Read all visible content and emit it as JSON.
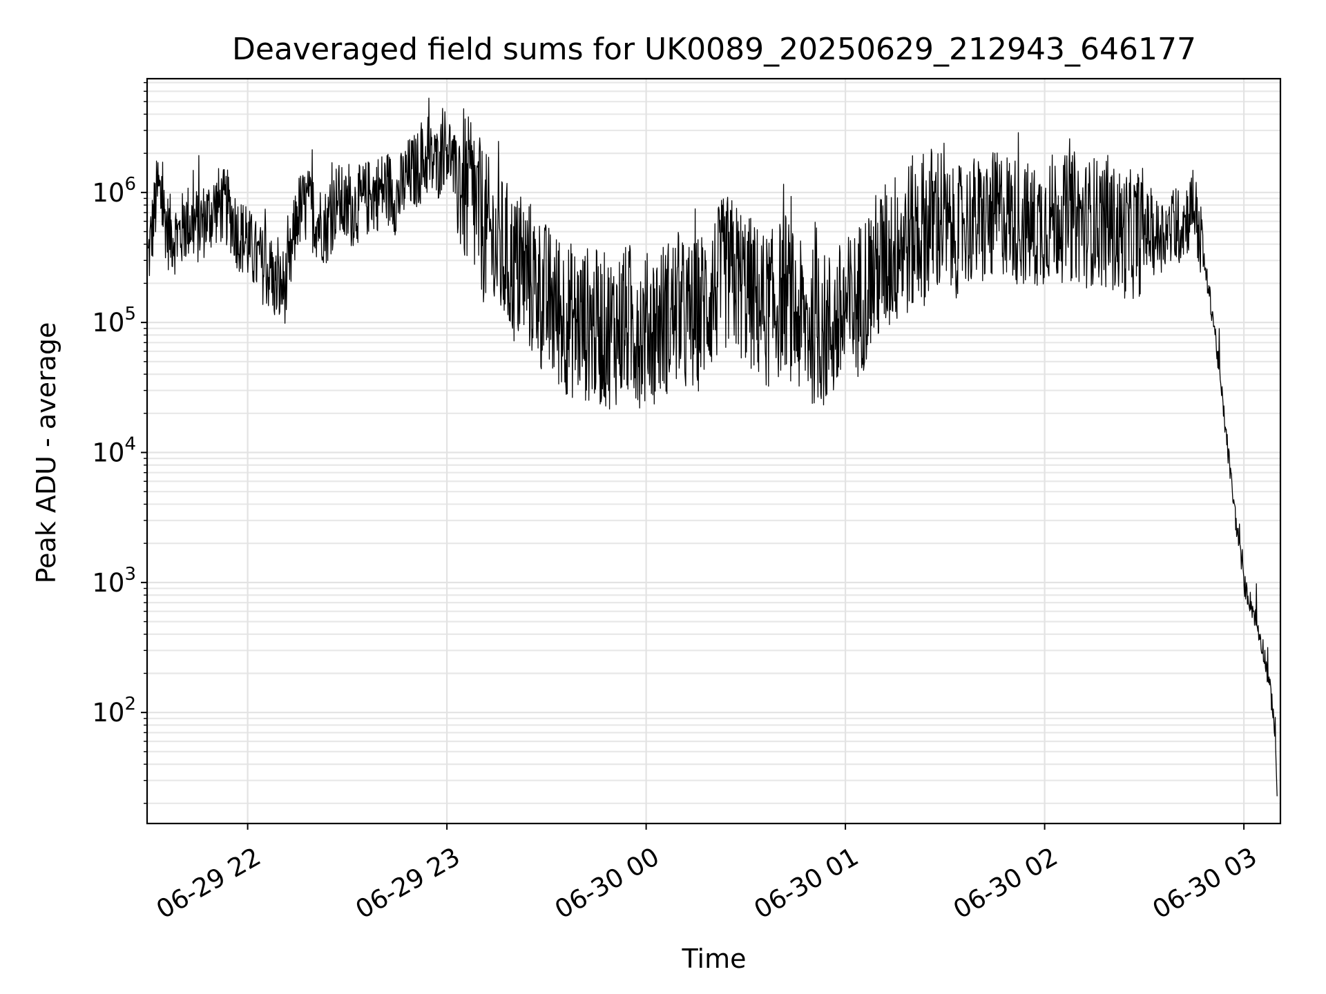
{
  "chart_data": {
    "type": "line",
    "title": "Deaveraged field sums for UK0089_20250629_212943_646177",
    "xlabel": "Time",
    "ylabel": "Peak ADU - average",
    "xscale": "time",
    "yscale": "log",
    "xlim": [
      "2025-06-29 21:29:43",
      "2025-06-30 03:11:00"
    ],
    "ylim": [
      14,
      7500000
    ],
    "x_ticks": [
      {
        "value": "2025-06-29 22:00",
        "label": "06-29 22"
      },
      {
        "value": "2025-06-29 23:00",
        "label": "06-29 23"
      },
      {
        "value": "2025-06-30 00:00",
        "label": "06-30 00"
      },
      {
        "value": "2025-06-30 01:00",
        "label": "06-30 01"
      },
      {
        "value": "2025-06-30 02:00",
        "label": "06-30 02"
      },
      {
        "value": "2025-06-30 03:00",
        "label": "06-30 03"
      }
    ],
    "y_ticks": [
      {
        "value": 100,
        "base": "10",
        "exp": "2"
      },
      {
        "value": 1000,
        "base": "10",
        "exp": "3"
      },
      {
        "value": 10000,
        "base": "10",
        "exp": "4"
      },
      {
        "value": 100000,
        "base": "10",
        "exp": "5"
      },
      {
        "value": 1000000,
        "base": "10",
        "exp": "6"
      }
    ],
    "grid": true,
    "line_color": "#000000",
    "series": [
      {
        "x": [
          "2025-06-29 21:30",
          "2025-06-29 21:33",
          "2025-06-29 21:36",
          "2025-06-29 21:39",
          "2025-06-29 21:42",
          "2025-06-29 21:45",
          "2025-06-29 21:48",
          "2025-06-29 21:51",
          "2025-06-29 21:54",
          "2025-06-29 21:57",
          "2025-06-29 22:00",
          "2025-06-29 22:03",
          "2025-06-29 22:06",
          "2025-06-29 22:09",
          "2025-06-29 22:12",
          "2025-06-29 22:15",
          "2025-06-29 22:18",
          "2025-06-29 22:21",
          "2025-06-29 22:24",
          "2025-06-29 22:27",
          "2025-06-29 22:30",
          "2025-06-29 22:33",
          "2025-06-29 22:36",
          "2025-06-29 22:39",
          "2025-06-29 22:42",
          "2025-06-29 22:45",
          "2025-06-29 22:48",
          "2025-06-29 22:51",
          "2025-06-29 22:54",
          "2025-06-29 22:57",
          "2025-06-29 23:00",
          "2025-06-29 23:03",
          "2025-06-29 23:06",
          "2025-06-29 23:09",
          "2025-06-29 23:12",
          "2025-06-29 23:15",
          "2025-06-29 23:18",
          "2025-06-29 23:21",
          "2025-06-29 23:24",
          "2025-06-29 23:27",
          "2025-06-29 23:30",
          "2025-06-29 23:33",
          "2025-06-29 23:36",
          "2025-06-29 23:39",
          "2025-06-29 23:42",
          "2025-06-29 23:45",
          "2025-06-29 23:48",
          "2025-06-29 23:51",
          "2025-06-29 23:54",
          "2025-06-29 23:57",
          "2025-06-30 00:00",
          "2025-06-30 00:03",
          "2025-06-30 00:06",
          "2025-06-30 00:09",
          "2025-06-30 00:12",
          "2025-06-30 00:15",
          "2025-06-30 00:18",
          "2025-06-30 00:21",
          "2025-06-30 00:24",
          "2025-06-30 00:27",
          "2025-06-30 00:30",
          "2025-06-30 00:33",
          "2025-06-30 00:36",
          "2025-06-30 00:39",
          "2025-06-30 00:42",
          "2025-06-30 00:45",
          "2025-06-30 00:48",
          "2025-06-30 00:51",
          "2025-06-30 00:54",
          "2025-06-30 00:57",
          "2025-06-30 01:00",
          "2025-06-30 01:03",
          "2025-06-30 01:06",
          "2025-06-30 01:09",
          "2025-06-30 01:12",
          "2025-06-30 01:15",
          "2025-06-30 01:18",
          "2025-06-30 01:21",
          "2025-06-30 01:24",
          "2025-06-30 01:27",
          "2025-06-30 01:30",
          "2025-06-30 01:33",
          "2025-06-30 01:36",
          "2025-06-30 01:39",
          "2025-06-30 01:42",
          "2025-06-30 01:45",
          "2025-06-30 01:48",
          "2025-06-30 01:51",
          "2025-06-30 01:54",
          "2025-06-30 01:57",
          "2025-06-30 02:00",
          "2025-06-30 02:03",
          "2025-06-30 02:06",
          "2025-06-30 02:09",
          "2025-06-30 02:12",
          "2025-06-30 02:15",
          "2025-06-30 02:18",
          "2025-06-30 02:21",
          "2025-06-30 02:24",
          "2025-06-30 02:27",
          "2025-06-30 02:30",
          "2025-06-30 02:33",
          "2025-06-30 02:36",
          "2025-06-30 02:39",
          "2025-06-30 02:42",
          "2025-06-30 02:45",
          "2025-06-30 02:48",
          "2025-06-30 02:51",
          "2025-06-30 02:54",
          "2025-06-30 02:57",
          "2025-06-30 03:00",
          "2025-06-30 03:03",
          "2025-06-30 03:06",
          "2025-06-30 03:09",
          "2025-06-30 03:10"
        ],
        "y": [
          300000,
          1100000,
          500000,
          450000,
          600000,
          550000,
          650000,
          800000,
          750000,
          500000,
          400000,
          300000,
          250000,
          180000,
          200000,
          700000,
          800000,
          600000,
          550000,
          900000,
          700000,
          800000,
          900000,
          1000000,
          1100000,
          900000,
          1300000,
          1500000,
          1800000,
          1600000,
          2500000,
          1200000,
          800000,
          600000,
          400000,
          300000,
          250000,
          200000,
          200000,
          150000,
          120000,
          100000,
          90000,
          80000,
          80000,
          75000,
          70000,
          75000,
          80000,
          75000,
          70000,
          80000,
          90000,
          100000,
          85000,
          90000,
          120000,
          150000,
          200000,
          180000,
          150000,
          120000,
          100000,
          110000,
          150000,
          90000,
          80000,
          75000,
          70000,
          80000,
          90000,
          110000,
          150000,
          200000,
          250000,
          300000,
          350000,
          400000,
          450000,
          500000,
          550000,
          500000,
          600000,
          650000,
          600000,
          700000,
          750000,
          650000,
          600000,
          550000,
          650000,
          700000,
          650000,
          700000,
          600000,
          650000,
          600000,
          550000,
          500000,
          500000,
          550000,
          450000,
          500000,
          500000,
          600000,
          800000,
          300000,
          100000,
          20000,
          4000,
          1000,
          600,
          300,
          100,
          25
        ],
        "noise_band": [
          [
            0.5,
            2
          ],
          [
            0.5,
            2
          ],
          [
            0.5,
            2
          ],
          [
            0.5,
            2
          ],
          [
            0.5,
            2
          ],
          [
            0.5,
            2
          ],
          [
            0.5,
            2
          ],
          [
            0.5,
            2
          ],
          [
            0.5,
            2
          ],
          [
            0.5,
            2
          ],
          [
            0.5,
            2
          ],
          [
            0.5,
            2
          ],
          [
            0.5,
            2
          ],
          [
            0.5,
            2
          ],
          [
            0.5,
            2
          ],
          [
            0.5,
            2
          ],
          [
            0.5,
            2
          ],
          [
            0.5,
            2
          ],
          [
            0.5,
            2
          ],
          [
            0.5,
            2
          ],
          [
            0.5,
            2
          ],
          [
            0.5,
            2
          ],
          [
            0.5,
            2
          ],
          [
            0.5,
            2
          ],
          [
            0.5,
            2
          ],
          [
            0.5,
            2
          ],
          [
            0.5,
            2
          ],
          [
            0.5,
            2
          ],
          [
            0.5,
            2
          ],
          [
            0.5,
            2
          ],
          [
            0.5,
            2
          ],
          [
            0.3,
            5
          ],
          [
            0.3,
            5
          ],
          [
            0.3,
            5
          ],
          [
            0.3,
            5
          ],
          [
            0.3,
            5
          ],
          [
            0.3,
            5
          ],
          [
            0.3,
            5
          ],
          [
            0.3,
            5
          ],
          [
            0.3,
            5
          ],
          [
            0.3,
            5
          ],
          [
            0.3,
            5
          ],
          [
            0.3,
            5
          ],
          [
            0.3,
            5
          ],
          [
            0.3,
            5
          ],
          [
            0.3,
            5
          ],
          [
            0.3,
            5
          ],
          [
            0.3,
            5
          ],
          [
            0.3,
            5
          ],
          [
            0.3,
            5
          ],
          [
            0.3,
            5
          ],
          [
            0.3,
            5
          ],
          [
            0.3,
            5
          ],
          [
            0.3,
            5
          ],
          [
            0.3,
            5
          ],
          [
            0.3,
            5
          ],
          [
            0.3,
            5
          ],
          [
            0.3,
            5
          ],
          [
            0.3,
            5
          ],
          [
            0.3,
            5
          ],
          [
            0.3,
            5
          ],
          [
            0.3,
            5
          ],
          [
            0.3,
            5
          ],
          [
            0.3,
            5
          ],
          [
            0.3,
            5
          ],
          [
            0.3,
            5
          ],
          [
            0.3,
            5
          ],
          [
            0.3,
            5
          ],
          [
            0.3,
            5
          ],
          [
            0.3,
            5
          ],
          [
            0.3,
            5
          ],
          [
            0.3,
            5
          ],
          [
            0.3,
            5
          ],
          [
            0.3,
            5
          ],
          [
            0.3,
            5
          ],
          [
            0.3,
            5
          ],
          [
            0.3,
            5
          ],
          [
            0.3,
            5
          ],
          [
            0.3,
            5
          ],
          [
            0.3,
            5
          ],
          [
            0.3,
            3
          ],
          [
            0.3,
            3
          ],
          [
            0.3,
            3
          ],
          [
            0.3,
            3
          ],
          [
            0.3,
            3
          ],
          [
            0.3,
            3
          ],
          [
            0.3,
            3
          ],
          [
            0.3,
            3
          ],
          [
            0.3,
            3
          ],
          [
            0.3,
            3
          ],
          [
            0.3,
            3
          ],
          [
            0.3,
            3
          ],
          [
            0.3,
            3
          ],
          [
            0.3,
            3
          ],
          [
            0.3,
            3
          ],
          [
            0.3,
            3
          ],
          [
            0.3,
            3
          ],
          [
            0.3,
            3
          ],
          [
            0.3,
            3
          ],
          [
            0.3,
            3
          ],
          [
            0.5,
            2
          ],
          [
            0.5,
            2
          ],
          [
            0.5,
            2
          ],
          [
            0.5,
            2
          ],
          [
            0.5,
            2
          ],
          [
            0.5,
            2
          ],
          [
            0.8,
            1.2
          ],
          [
            0.8,
            1.2
          ],
          [
            0.8,
            1.2
          ],
          [
            0.8,
            1.2
          ],
          [
            0.8,
            1.2
          ],
          [
            0.8,
            1.2
          ],
          [
            0.8,
            1.2
          ],
          [
            0.8,
            1.2
          ],
          [
            0.8,
            1.2
          ]
        ]
      }
    ]
  }
}
